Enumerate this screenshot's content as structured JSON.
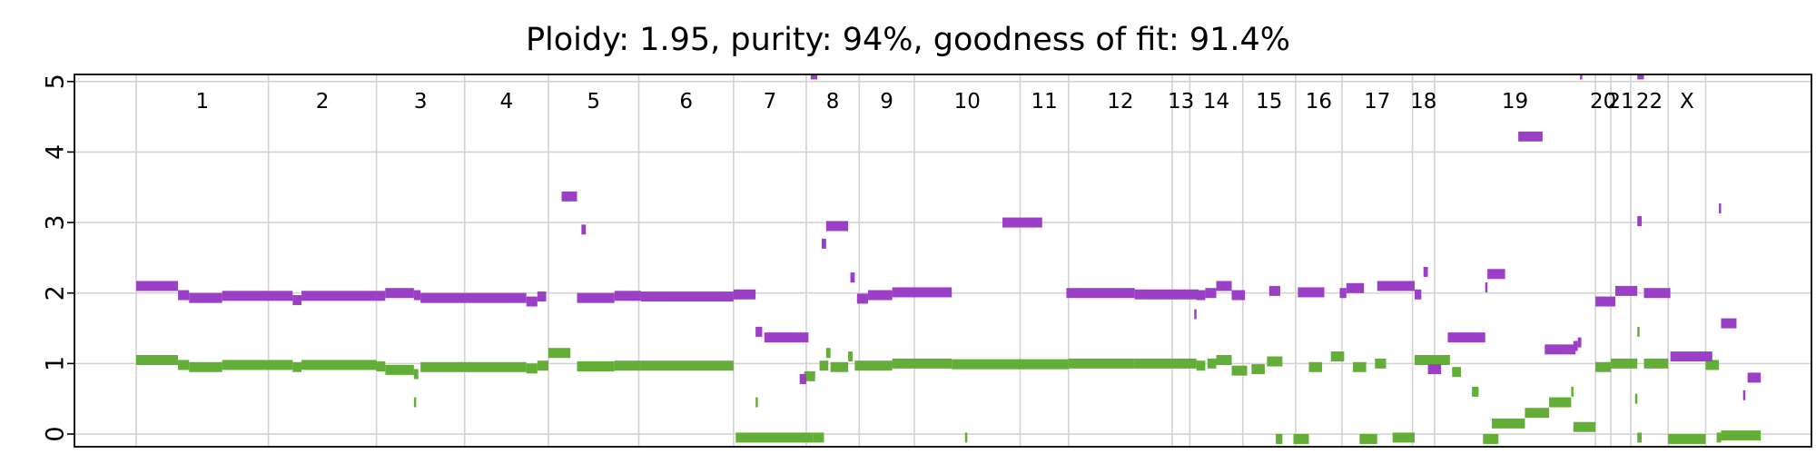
{
  "chart_data": {
    "type": "scatter",
    "title": "Ploidy: 1.95, purity: 94%, goodness of fit: 91.4%",
    "xlim": [
      -1.4,
      38.0
    ],
    "ylim": [
      -0.18,
      5.1
    ],
    "yticks": [
      "0",
      "1",
      "2",
      "3",
      "4",
      "5"
    ],
    "grid": true,
    "colors": {
      "major": "#9a3fc6",
      "minor": "#62ae36"
    },
    "chromosomes": [
      {
        "label": "1",
        "start": 0.0,
        "end": 3.0
      },
      {
        "label": "2",
        "start": 3.0,
        "end": 5.45
      },
      {
        "label": "3",
        "start": 5.45,
        "end": 7.45
      },
      {
        "label": "4",
        "start": 7.45,
        "end": 9.35
      },
      {
        "label": "5",
        "start": 9.35,
        "end": 11.4
      },
      {
        "label": "6",
        "start": 11.4,
        "end": 13.55
      },
      {
        "label": "7",
        "start": 13.55,
        "end": 15.2
      },
      {
        "label": "8",
        "start": 15.2,
        "end": 16.4
      },
      {
        "label": "9",
        "start": 16.4,
        "end": 17.65
      },
      {
        "label": "10",
        "start": 17.65,
        "end": 20.05
      },
      {
        "label": "11",
        "start": 20.05,
        "end": 21.15
      },
      {
        "label": "12",
        "start": 21.15,
        "end": 23.5
      },
      {
        "label": "13",
        "start": 23.5,
        "end": 23.9
      },
      {
        "label": "14",
        "start": 23.9,
        "end": 25.1
      },
      {
        "label": "15",
        "start": 25.1,
        "end": 26.3
      },
      {
        "label": "16",
        "start": 26.3,
        "end": 27.35
      },
      {
        "label": "17",
        "start": 27.35,
        "end": 28.95
      },
      {
        "label": "18",
        "start": 28.95,
        "end": 29.45
      },
      {
        "label": "19",
        "start": 29.45,
        "end": 33.1
      },
      {
        "label": "20",
        "start": 33.1,
        "end": 33.45
      },
      {
        "label": "21",
        "start": 33.45,
        "end": 33.9
      },
      {
        "label": "22",
        "start": 33.9,
        "end": 34.75
      },
      {
        "label": "X",
        "start": 34.75,
        "end": 35.6
      }
    ],
    "series": [
      {
        "name": "",
        "role": "major",
        "segments": [
          [
            0.0,
            0.95,
            2.1
          ],
          [
            0.95,
            1.2,
            1.97
          ],
          [
            1.2,
            1.95,
            1.93
          ],
          [
            1.95,
            3.55,
            1.96
          ],
          [
            3.55,
            3.75,
            1.9
          ],
          [
            3.75,
            5.45,
            1.96
          ],
          [
            5.45,
            5.65,
            1.96
          ],
          [
            5.65,
            6.3,
            2.0
          ],
          [
            6.3,
            6.45,
            1.97
          ],
          [
            6.45,
            8.85,
            1.93
          ],
          [
            8.85,
            9.1,
            1.88
          ],
          [
            9.1,
            9.3,
            1.95
          ],
          [
            9.65,
            10.0,
            3.37
          ],
          [
            10.1,
            10.2,
            2.9
          ],
          [
            10.0,
            10.85,
            1.93
          ],
          [
            10.85,
            11.45,
            1.96
          ],
          [
            11.45,
            13.55,
            1.95
          ],
          [
            13.55,
            14.05,
            1.98
          ],
          [
            14.05,
            14.2,
            1.45
          ],
          [
            14.25,
            15.25,
            1.37
          ],
          [
            15.05,
            15.2,
            0.78
          ],
          [
            15.3,
            15.45,
            5.1
          ],
          [
            15.55,
            15.65,
            2.7
          ],
          [
            15.65,
            16.15,
            2.95
          ],
          [
            16.2,
            16.3,
            2.22
          ],
          [
            16.35,
            16.6,
            1.92
          ],
          [
            16.6,
            17.15,
            1.97
          ],
          [
            17.15,
            18.5,
            2.01
          ],
          [
            19.65,
            20.55,
            3.0
          ],
          [
            21.1,
            22.65,
            2.0
          ],
          [
            22.65,
            24.1,
            1.98
          ],
          [
            24.0,
            24.05,
            1.7
          ],
          [
            24.05,
            24.25,
            1.97
          ],
          [
            24.25,
            24.5,
            2.0
          ],
          [
            24.5,
            24.85,
            2.1
          ],
          [
            24.85,
            25.15,
            1.97
          ],
          [
            25.7,
            25.95,
            2.03
          ],
          [
            26.35,
            26.95,
            2.01
          ],
          [
            27.3,
            27.45,
            2.0
          ],
          [
            27.45,
            27.85,
            2.07
          ],
          [
            28.15,
            29.0,
            2.1
          ],
          [
            29.0,
            29.15,
            1.98
          ],
          [
            29.2,
            29.3,
            2.3
          ],
          [
            29.3,
            29.6,
            0.92
          ],
          [
            29.75,
            30.6,
            1.37
          ],
          [
            30.6,
            30.65,
            2.08
          ],
          [
            30.65,
            31.05,
            2.27
          ],
          [
            31.35,
            31.9,
            4.22
          ],
          [
            31.95,
            32.45,
            1.2
          ],
          [
            32.45,
            32.65,
            1.2
          ],
          [
            32.6,
            32.7,
            1.25
          ],
          [
            32.7,
            32.78,
            1.3
          ],
          [
            32.75,
            32.8,
            5.1
          ],
          [
            33.1,
            33.55,
            1.88
          ],
          [
            33.55,
            34.05,
            2.03
          ],
          [
            34.05,
            34.15,
            3.02
          ],
          [
            34.05,
            34.2,
            5.1
          ],
          [
            34.2,
            34.8,
            2.0
          ],
          [
            34.8,
            35.75,
            1.1
          ],
          [
            35.9,
            35.95,
            3.2
          ],
          [
            35.95,
            36.3,
            1.57
          ],
          [
            36.45,
            36.5,
            0.55
          ],
          [
            36.55,
            36.85,
            0.8
          ]
        ]
      },
      {
        "name": "",
        "role": "minor",
        "segments": [
          [
            0.0,
            0.95,
            1.05
          ],
          [
            0.95,
            1.2,
            0.98
          ],
          [
            1.2,
            1.95,
            0.95
          ],
          [
            1.95,
            3.55,
            0.98
          ],
          [
            3.55,
            3.75,
            0.95
          ],
          [
            3.75,
            5.45,
            0.98
          ],
          [
            5.45,
            5.65,
            0.96
          ],
          [
            5.65,
            6.3,
            0.91
          ],
          [
            6.3,
            6.4,
            0.85
          ],
          [
            6.3,
            6.35,
            0.45
          ],
          [
            6.45,
            8.85,
            0.95
          ],
          [
            8.85,
            9.1,
            0.93
          ],
          [
            9.1,
            9.35,
            0.97
          ],
          [
            9.35,
            9.85,
            1.15
          ],
          [
            10.0,
            10.85,
            0.96
          ],
          [
            10.85,
            11.45,
            0.97
          ],
          [
            11.45,
            13.55,
            0.97
          ],
          [
            13.6,
            15.35,
            -0.05
          ],
          [
            14.05,
            14.1,
            0.45
          ],
          [
            15.15,
            15.4,
            0.82
          ],
          [
            15.35,
            15.6,
            -0.05
          ],
          [
            15.5,
            15.7,
            0.97
          ],
          [
            15.65,
            15.75,
            1.15
          ],
          [
            15.75,
            16.15,
            0.95
          ],
          [
            16.15,
            16.25,
            1.1
          ],
          [
            16.3,
            17.15,
            0.97
          ],
          [
            17.15,
            18.5,
            1.0
          ],
          [
            18.8,
            18.85,
            -0.05
          ],
          [
            18.5,
            21.15,
            0.99
          ],
          [
            21.15,
            22.65,
            1.0
          ],
          [
            22.65,
            24.05,
            1.0
          ],
          [
            24.05,
            24.25,
            0.97
          ],
          [
            24.3,
            24.5,
            1.0
          ],
          [
            24.5,
            24.85,
            1.05
          ],
          [
            24.85,
            25.2,
            0.9
          ],
          [
            25.3,
            25.6,
            0.92
          ],
          [
            25.65,
            26.0,
            1.03
          ],
          [
            25.85,
            26.0,
            -0.07
          ],
          [
            26.25,
            26.6,
            -0.07
          ],
          [
            26.6,
            26.9,
            0.95
          ],
          [
            27.1,
            27.4,
            1.1
          ],
          [
            27.6,
            27.9,
            0.95
          ],
          [
            27.75,
            28.15,
            -0.07
          ],
          [
            28.1,
            28.35,
            1.0
          ],
          [
            28.5,
            29.0,
            -0.05
          ],
          [
            29.0,
            29.8,
            1.05
          ],
          [
            29.85,
            30.05,
            0.88
          ],
          [
            30.3,
            30.45,
            0.6
          ],
          [
            30.55,
            30.9,
            -0.07
          ],
          [
            30.75,
            31.5,
            0.15
          ],
          [
            31.5,
            32.05,
            0.3
          ],
          [
            32.05,
            32.55,
            0.45
          ],
          [
            32.55,
            32.6,
            0.6
          ],
          [
            32.6,
            33.1,
            0.1
          ],
          [
            33.1,
            33.45,
            0.95
          ],
          [
            33.45,
            34.05,
            1.0
          ],
          [
            34.0,
            34.05,
            0.5
          ],
          [
            34.05,
            34.1,
            1.45
          ],
          [
            34.05,
            34.15,
            -0.05
          ],
          [
            34.2,
            34.75,
            1.0
          ],
          [
            34.75,
            35.6,
            -0.07
          ],
          [
            35.6,
            35.9,
            0.98
          ],
          [
            35.85,
            35.95,
            -0.05
          ],
          [
            35.95,
            36.85,
            -0.02
          ]
        ]
      }
    ]
  }
}
